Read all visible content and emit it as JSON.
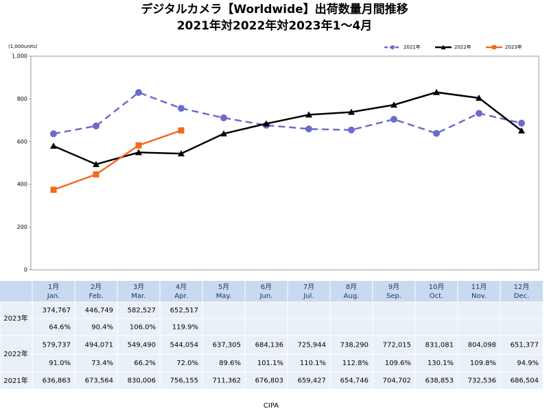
{
  "chart_data": {
    "type": "line",
    "title": "デジタルカメラ【Worldwide】出荷数量月間推移",
    "subtitle": "2021年対2022年対2023年1～4月",
    "unit_label": "(1,000units)",
    "source": "CIPA",
    "categories": [
      "1月",
      "2月",
      "3月",
      "4月",
      "5月",
      "6月",
      "7月",
      "8月",
      "9月",
      "10月",
      "11月",
      "12月"
    ],
    "categories_en": [
      "Jan.",
      "Feb.",
      "Mar.",
      "Apr.",
      "May.",
      "Jun.",
      "Jul.",
      "Aug.",
      "Sep.",
      "Oct.",
      "Nov.",
      "Dec."
    ],
    "ylim": [
      0,
      1000
    ],
    "yticks": [
      0,
      200,
      400,
      600,
      800,
      {
        "value": 1000,
        "label": "1,000"
      }
    ],
    "grid": false,
    "legend": "top-right",
    "series": [
      {
        "name": "2021年",
        "color": "#6b6bcc",
        "dashed": true,
        "marker": "circle",
        "values": [
          636.863,
          673.564,
          830.006,
          756.155,
          711.362,
          676.803,
          659.427,
          654.746,
          704.702,
          638.853,
          732.536,
          686.504
        ],
        "value_labels": [
          "636,863",
          "673,564",
          "830,006",
          "756,155",
          "711,362",
          "676,803",
          "659,427",
          "654,746",
          "704,702",
          "638,853",
          "732,536",
          "686,504"
        ]
      },
      {
        "name": "2022年",
        "color": "#000000",
        "dashed": false,
        "marker": "triangle",
        "values": [
          579.737,
          494.071,
          549.49,
          544.054,
          637.305,
          684.136,
          725.944,
          738.29,
          772.015,
          831.081,
          804.098,
          651.377
        ],
        "value_labels": [
          "579,737",
          "494,071",
          "549,490",
          "544,054",
          "637,305",
          "684,136",
          "725,944",
          "738,290",
          "772,015",
          "831,081",
          "804,098",
          "651,377"
        ],
        "yoy_labels": [
          "91.0%",
          "73.4%",
          "66.2%",
          "72.0%",
          "89.6%",
          "101.1%",
          "110.1%",
          "112.8%",
          "109.6%",
          "130.1%",
          "109.8%",
          "94.9%"
        ]
      },
      {
        "name": "2023年",
        "color": "#f26b1d",
        "dashed": false,
        "marker": "square",
        "values": [
          374.767,
          446.749,
          582.527,
          652.517,
          null,
          null,
          null,
          null,
          null,
          null,
          null,
          null
        ],
        "value_labels": [
          "374,767",
          "446,749",
          "582,527",
          "652,517",
          null,
          null,
          null,
          null,
          null,
          null,
          null,
          null
        ],
        "yoy_labels": [
          "64.6%",
          "90.4%",
          "106.0%",
          "119.9%",
          null,
          null,
          null,
          null,
          null,
          null,
          null,
          null
        ]
      }
    ]
  }
}
